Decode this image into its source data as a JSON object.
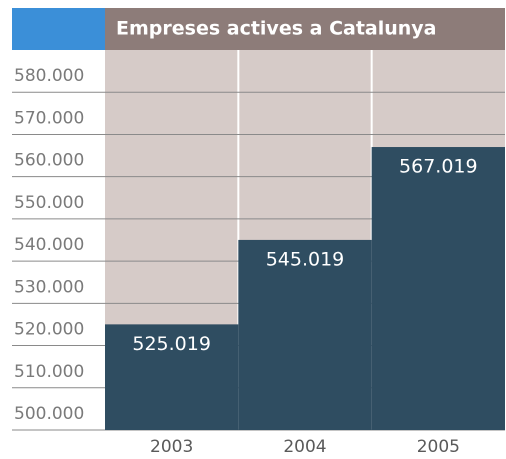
{
  "chart_data": {
    "type": "bar",
    "title": "Empreses actives a Catalunya",
    "categories": [
      "2003",
      "2004",
      "2005"
    ],
    "values": [
      525019,
      545019,
      567019
    ],
    "value_labels": [
      "525.019",
      "545.019",
      "567.019"
    ],
    "color": "#2f4d61",
    "ylim": [
      500000,
      590000
    ],
    "yticks": [
      {
        "value": 500000,
        "label": "500.000"
      },
      {
        "value": 510000,
        "label": "510.000"
      },
      {
        "value": 520000,
        "label": "520.000"
      },
      {
        "value": 530000,
        "label": "530.000"
      },
      {
        "value": 540000,
        "label": "540.000"
      },
      {
        "value": 550000,
        "label": "550.000"
      },
      {
        "value": 560000,
        "label": "560.000"
      },
      {
        "value": 570000,
        "label": "570.000"
      },
      {
        "value": 580000,
        "label": "580.000"
      }
    ],
    "grid": true
  }
}
